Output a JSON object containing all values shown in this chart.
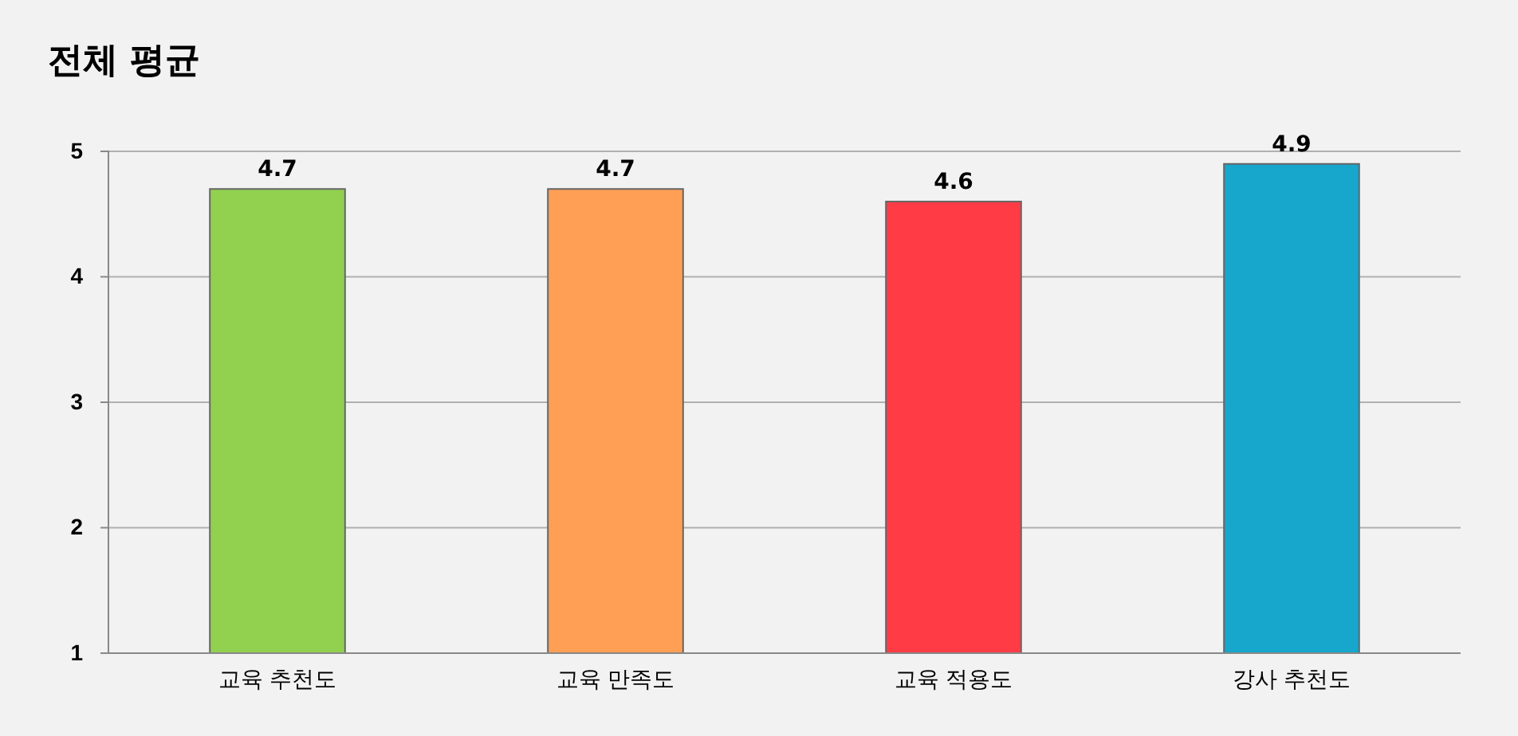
{
  "chart_data": {
    "type": "bar",
    "title": "전체 평균",
    "categories": [
      "교육 추천도",
      "교육 만족도",
      "교육 적용도",
      "강사 추천도"
    ],
    "values": [
      4.7,
      4.7,
      4.6,
      4.9
    ],
    "colors": [
      "#92d050",
      "#ff9f55",
      "#ff3c46",
      "#17a6cc"
    ],
    "ylim": [
      1,
      5
    ],
    "yticks": [
      1,
      2,
      3,
      4,
      5
    ],
    "grid": "y",
    "data_labels": true
  }
}
